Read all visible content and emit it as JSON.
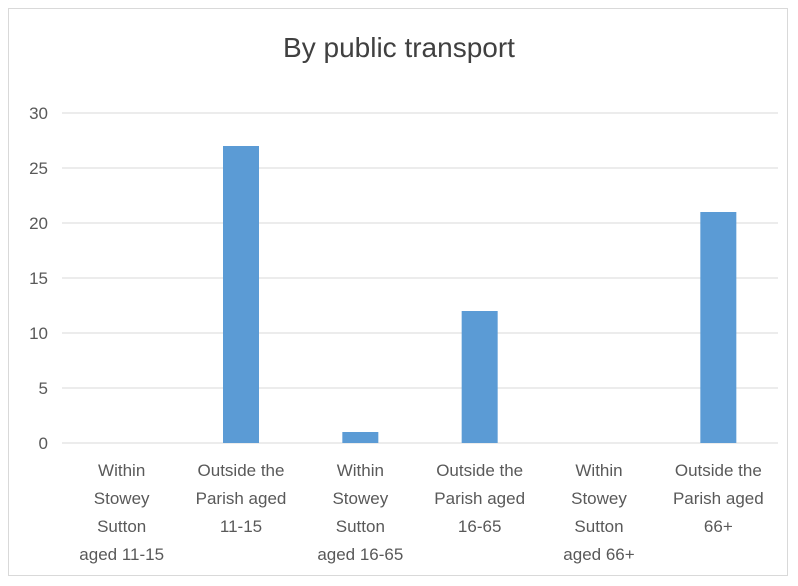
{
  "chart_data": {
    "type": "bar",
    "title": "By public transport",
    "categories": [
      [
        "Within",
        "Stowey",
        "Sutton",
        "aged 11-15"
      ],
      [
        "Outside the",
        "Parish aged",
        "11-15"
      ],
      [
        "Within",
        "Stowey",
        "Sutton",
        "aged 16-65"
      ],
      [
        "Outside the",
        "Parish aged",
        "16-65"
      ],
      [
        "Within",
        "Stowey",
        "Sutton",
        "aged 66+"
      ],
      [
        "Outside the",
        "Parish aged",
        "66+"
      ]
    ],
    "values": [
      0,
      27,
      1,
      12,
      0,
      21
    ],
    "ylim": [
      0,
      30
    ],
    "yticks": [
      0,
      5,
      10,
      15,
      20,
      25,
      30
    ],
    "grid": true,
    "bar_color": "#5b9bd5",
    "grid_color": "#d9d9d9"
  }
}
